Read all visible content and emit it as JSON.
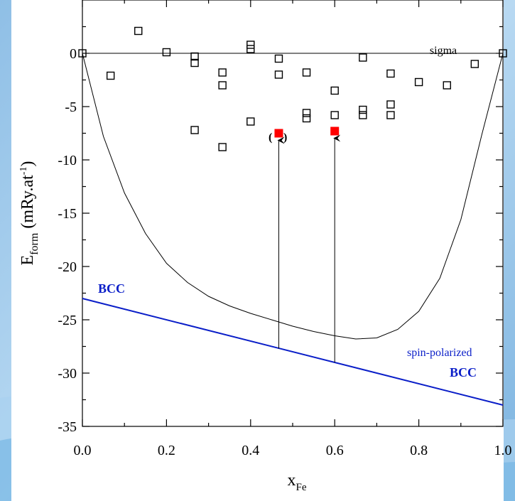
{
  "chart_data": {
    "type": "scatter",
    "xlabel_main": "x",
    "xlabel_sub": "Fe",
    "ylabel_main": "E",
    "ylabel_sub": "form",
    "ylabel_unit_pre": "(mRy.at",
    "ylabel_unit_sup": "-1",
    "ylabel_unit_post": ")",
    "xlim": [
      0.0,
      1.0
    ],
    "ylim": [
      -35,
      5
    ],
    "x_ticks": [
      0.0,
      0.2,
      0.4,
      0.6,
      0.8,
      1.0
    ],
    "x_tick_labels": [
      "0.0",
      "0.2",
      "0.4",
      "0.6",
      "0.8",
      "1.0"
    ],
    "y_ticks": [
      0,
      -5,
      -10,
      -15,
      -20,
      -25,
      -30,
      -35
    ],
    "y_tick_labels": [
      "0",
      "-5",
      "-10",
      "-15",
      "-20",
      "-25",
      "-30",
      "-35"
    ],
    "sigma_points": [
      [
        0.0,
        0.0
      ],
      [
        0.067,
        -2.1
      ],
      [
        0.133,
        2.1
      ],
      [
        0.2,
        0.1
      ],
      [
        0.267,
        -0.3
      ],
      [
        0.267,
        -0.9
      ],
      [
        0.267,
        -7.2
      ],
      [
        0.333,
        -1.8
      ],
      [
        0.333,
        -3.0
      ],
      [
        0.333,
        -8.8
      ],
      [
        0.4,
        0.8
      ],
      [
        0.4,
        0.4
      ],
      [
        0.4,
        -6.4
      ],
      [
        0.467,
        -0.5
      ],
      [
        0.467,
        -2.0
      ],
      [
        0.533,
        -1.8
      ],
      [
        0.533,
        -5.6
      ],
      [
        0.533,
        -6.1
      ],
      [
        0.6,
        -3.5
      ],
      [
        0.6,
        -5.8
      ],
      [
        0.667,
        -0.4
      ],
      [
        0.667,
        -5.3
      ],
      [
        0.667,
        -5.8
      ],
      [
        0.733,
        -1.9
      ],
      [
        0.733,
        -4.8
      ],
      [
        0.733,
        -5.8
      ],
      [
        0.8,
        -2.7
      ],
      [
        0.867,
        -3.0
      ],
      [
        0.933,
        -1.0
      ],
      [
        1.0,
        0.0
      ]
    ],
    "highlighted_points": [
      {
        "x": 0.467,
        "y": -7.5,
        "arrow_from_y": -27.7,
        "parenthesized": true
      },
      {
        "x": 0.6,
        "y": -7.3,
        "arrow_from_y": -29.0,
        "parenthesized": false
      }
    ],
    "non_magnetic_curve": {
      "x": [
        0.0,
        0.05,
        0.1,
        0.15,
        0.2,
        0.25,
        0.3,
        0.35,
        0.4,
        0.45,
        0.5,
        0.55,
        0.6,
        0.65,
        0.7,
        0.75,
        0.8,
        0.85,
        0.9,
        0.95,
        1.0
      ],
      "y": [
        0.0,
        -7.8,
        -13.1,
        -16.9,
        -19.7,
        -21.5,
        -22.8,
        -23.7,
        -24.4,
        -25.0,
        -25.6,
        -26.1,
        -26.5,
        -26.8,
        -26.7,
        -25.9,
        -24.2,
        -21.1,
        -15.6,
        -7.6,
        0.0
      ]
    },
    "bcc_line": {
      "x": [
        0.0,
        1.0
      ],
      "y": [
        -23.0,
        -33.0
      ]
    },
    "sigma_reference_line": {
      "x": [
        0.0,
        1.0
      ],
      "y": [
        0.0,
        0.0
      ]
    },
    "annotations": {
      "sigma": "sigma",
      "bcc_left": "BCC",
      "spin_polarized": "spin-polarized",
      "bcc_right": "BCC",
      "paren_open": "(",
      "paren_close": ")"
    },
    "colors": {
      "bcc": "#0a1ec8",
      "highlight": "#ff0000",
      "axis": "#000000",
      "background_accent": "#9dc6ea"
    }
  }
}
